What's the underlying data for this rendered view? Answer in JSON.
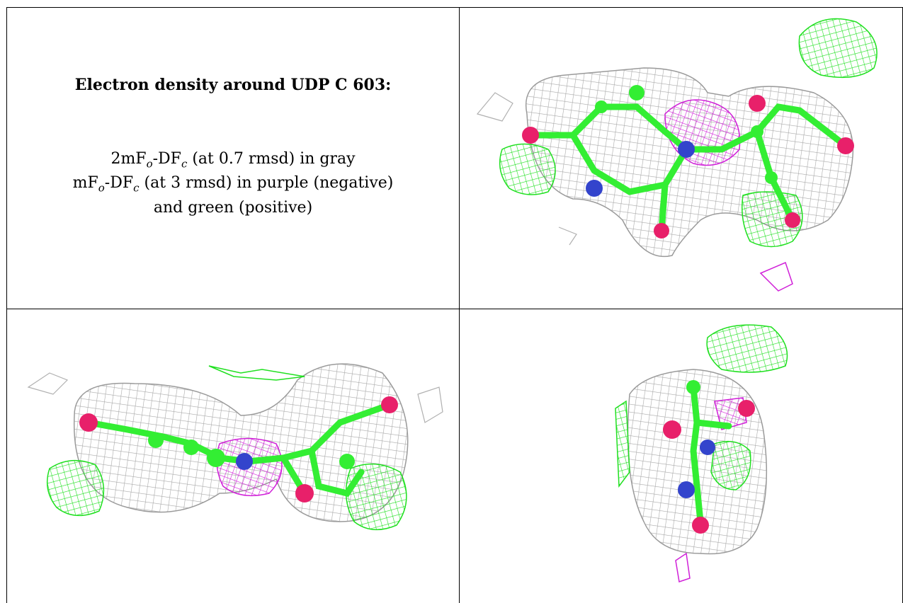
{
  "caption": {
    "title": "Electron density around UDP C 603:",
    "line1_prefix": "2mF",
    "line1_sub1": "o",
    "line1_mid": "-DF",
    "line1_sub2": "c",
    "line1_suffix": " (at 0.7 rmsd) in gray",
    "line2_prefix": "mF",
    "line2_sub1": "o",
    "line2_mid": "-DF",
    "line2_sub2": "c",
    "line2_suffix": " (at 3 rmsd) in purple (negative)",
    "line3": "and green (positive)"
  },
  "colors": {
    "gray_mesh": "#9a9a9a",
    "purple_mesh": "#d020d8",
    "green_mesh": "#20e020",
    "carbon": "#33ee33",
    "oxygen": "#e8206a",
    "nitrogen": "#3344cc"
  },
  "views": [
    "top-right-view",
    "bottom-left-view",
    "bottom-right-view"
  ]
}
